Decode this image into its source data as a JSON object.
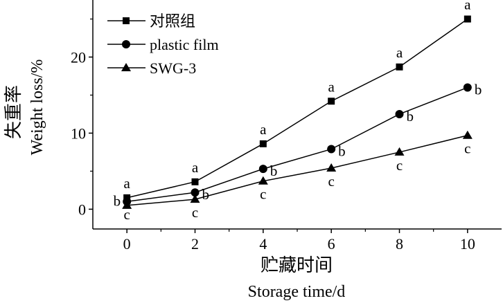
{
  "chart_data": {
    "type": "line",
    "xlabel_zh": "贮藏时间",
    "xlabel": "Storage time/d",
    "ylabel_zh": "失重率",
    "ylabel": "Weight loss/%",
    "x": [
      0,
      2,
      4,
      6,
      8,
      10
    ],
    "xticks": [
      "0",
      "2",
      "4",
      "6",
      "8",
      "10"
    ],
    "xlim": [
      -1,
      11
    ],
    "yticks": [
      "0",
      "10",
      "20"
    ],
    "ylim": [
      -2.6,
      27.5
    ],
    "grid": false,
    "legend_position": "top-left",
    "series": [
      {
        "name": "对照组",
        "marker": "square",
        "values": [
          1.5,
          3.6,
          8.6,
          14.2,
          18.7,
          25.0
        ],
        "labels": [
          "a",
          "a",
          "a",
          "a",
          "a",
          "a"
        ]
      },
      {
        "name": "plastic film",
        "marker": "circle",
        "values": [
          1.0,
          2.2,
          5.3,
          7.9,
          12.5,
          16.0
        ],
        "labels": [
          "b",
          "b",
          "b",
          "b",
          "b",
          "b"
        ]
      },
      {
        "name": "SWG-3",
        "marker": "triangle",
        "values": [
          0.5,
          1.3,
          3.7,
          5.4,
          7.5,
          9.7
        ],
        "labels": [
          "c",
          "c",
          "c",
          "c",
          "c",
          "c"
        ]
      }
    ]
  }
}
